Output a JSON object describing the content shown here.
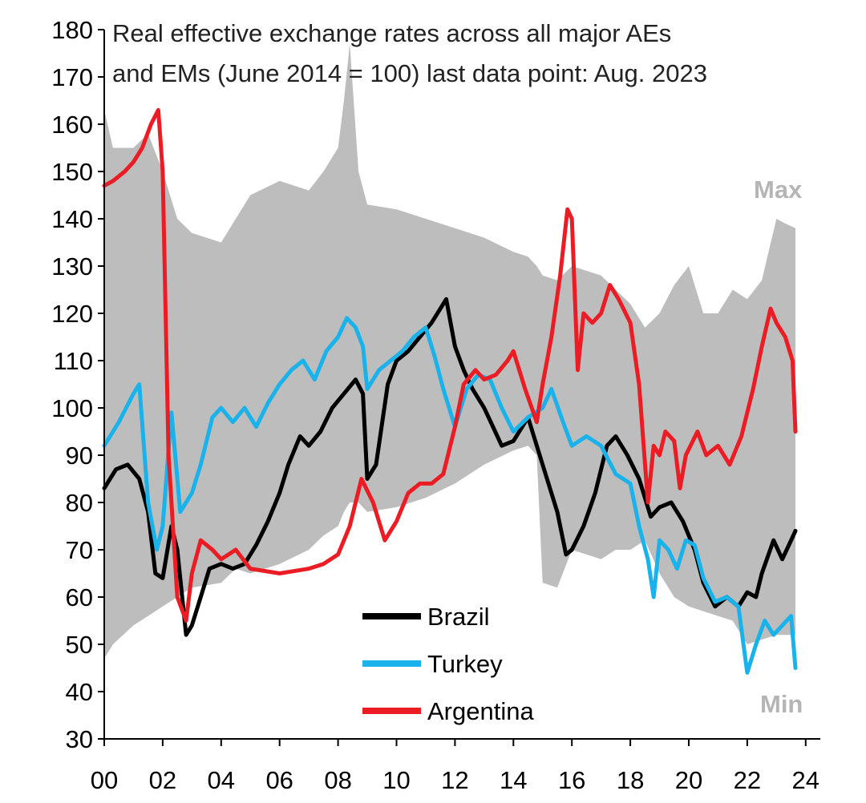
{
  "chart_data": {
    "type": "line",
    "title_line1": "Real effective exchange rates across all major AEs",
    "title_line2": "and EMs (June 2014  = 100)  last data point: Aug. 2023",
    "xlabel": "",
    "ylabel": "",
    "xlim": [
      2000,
      2024.5
    ],
    "ylim": [
      30,
      180
    ],
    "x_ticks": [
      2000,
      2002,
      2004,
      2006,
      2008,
      2010,
      2012,
      2014,
      2016,
      2018,
      2020,
      2022,
      2024
    ],
    "x_tick_labels": [
      "00",
      "02",
      "04",
      "06",
      "08",
      "10",
      "12",
      "14",
      "16",
      "18",
      "20",
      "22",
      "24"
    ],
    "y_ticks": [
      30,
      40,
      50,
      60,
      70,
      80,
      90,
      100,
      110,
      120,
      130,
      140,
      150,
      160,
      170,
      180
    ],
    "y_tick_labels": [
      "30",
      "40",
      "50",
      "60",
      "70",
      "80",
      "90",
      "100",
      "110",
      "120",
      "130",
      "140",
      "150",
      "160",
      "170",
      "180"
    ],
    "band": {
      "name": "Max/Min range",
      "color": "#bdbdbd",
      "max_label": "Max",
      "min_label": "Min",
      "x": [
        2000,
        2000.3,
        2001,
        2001.5,
        2002,
        2002.5,
        2003,
        2004,
        2004.5,
        2005,
        2006,
        2007,
        2007.5,
        2008,
        2008.2,
        2008.4,
        2008.7,
        2009,
        2010,
        2011,
        2012,
        2013,
        2014,
        2014.5,
        2014.8,
        2015,
        2015.5,
        2016,
        2017,
        2017.5,
        2018,
        2018.5,
        2019,
        2019.5,
        2020,
        2020.5,
        2021,
        2021.5,
        2022,
        2022.5,
        2023,
        2023.3,
        2023.65
      ],
      "max": [
        163,
        155,
        155,
        158,
        150,
        140,
        137,
        135,
        140,
        145,
        148,
        146,
        150,
        155,
        165,
        177,
        150,
        143,
        142,
        140,
        138,
        136,
        133,
        132,
        130,
        128,
        127,
        130,
        128,
        125,
        122,
        117,
        120,
        126,
        130,
        120,
        120,
        125,
        123,
        127,
        140,
        139,
        138
      ],
      "min": [
        47,
        50,
        54,
        56,
        58,
        60,
        62,
        63,
        66,
        65,
        67,
        70,
        73,
        75,
        78,
        80,
        80,
        78,
        79,
        81,
        84,
        88,
        91,
        92,
        90,
        63,
        62,
        70,
        68,
        70,
        70,
        72,
        65,
        60,
        58,
        57,
        56,
        55,
        50,
        51,
        52,
        52,
        52
      ]
    },
    "series": [
      {
        "name": "Brazil",
        "color": "#000000",
        "x": [
          2000,
          2000.4,
          2000.8,
          2001.2,
          2001.5,
          2001.75,
          2002,
          2002.3,
          2002.5,
          2002.8,
          2003,
          2003.3,
          2003.6,
          2004,
          2004.4,
          2004.8,
          2005.2,
          2005.6,
          2006,
          2006.3,
          2006.7,
          2007,
          2007.4,
          2007.8,
          2008.2,
          2008.6,
          2008.85,
          2009,
          2009.3,
          2009.7,
          2010,
          2010.4,
          2010.8,
          2011.2,
          2011.5,
          2011.7,
          2012,
          2012.3,
          2012.6,
          2013,
          2013.3,
          2013.6,
          2014,
          2014.5,
          2015,
          2015.5,
          2015.8,
          2016,
          2016.4,
          2016.8,
          2017.2,
          2017.5,
          2017.9,
          2018.3,
          2018.7,
          2019,
          2019.4,
          2019.8,
          2020.2,
          2020.5,
          2020.9,
          2021.3,
          2021.7,
          2022,
          2022.3,
          2022.5,
          2022.9,
          2023.2,
          2023.5,
          2023.65
        ],
        "values": [
          83,
          87,
          88,
          85,
          78,
          65,
          64,
          75,
          70,
          52,
          54,
          60,
          66,
          67,
          66,
          67,
          71,
          76,
          82,
          88,
          94,
          92,
          95,
          100,
          103,
          106,
          103,
          85,
          88,
          105,
          110,
          112,
          115,
          118,
          121,
          123,
          113,
          108,
          104,
          100,
          96,
          92,
          93,
          98,
          88,
          78,
          69,
          70,
          75,
          82,
          92,
          94,
          90,
          85,
          77,
          79,
          80,
          76,
          70,
          63,
          58,
          60,
          58,
          61,
          60,
          65,
          72,
          68,
          72,
          74
        ]
      },
      {
        "name": "Turkey",
        "color": "#1ab2ea",
        "x": [
          2000,
          2000.5,
          2001,
          2001.2,
          2001.5,
          2001.8,
          2002,
          2002.3,
          2002.6,
          2003,
          2003.3,
          2003.7,
          2004,
          2004.4,
          2004.8,
          2005.2,
          2005.6,
          2006,
          2006.4,
          2006.8,
          2007.2,
          2007.6,
          2008,
          2008.3,
          2008.6,
          2008.85,
          2009,
          2009.4,
          2009.8,
          2010.2,
          2010.6,
          2011,
          2011.3,
          2011.6,
          2012,
          2012.4,
          2012.8,
          2013.2,
          2013.6,
          2014,
          2014.5,
          2015,
          2015.3,
          2015.7,
          2016,
          2016.5,
          2017,
          2017.5,
          2018,
          2018.3,
          2018.6,
          2018.8,
          2019,
          2019.3,
          2019.6,
          2019.9,
          2020.2,
          2020.5,
          2020.9,
          2021.3,
          2021.7,
          2022,
          2022.3,
          2022.6,
          2022.9,
          2023.2,
          2023.5,
          2023.65
        ],
        "values": [
          92,
          97,
          103,
          105,
          80,
          70,
          75,
          99,
          78,
          82,
          88,
          98,
          100,
          97,
          100,
          96,
          101,
          105,
          108,
          110,
          106,
          112,
          115,
          119,
          117,
          113,
          104,
          108,
          110,
          112,
          115,
          117,
          111,
          104,
          96,
          104,
          107,
          106,
          100,
          95,
          98,
          100,
          104,
          97,
          92,
          94,
          92,
          86,
          84,
          75,
          68,
          60,
          72,
          70,
          66,
          72,
          71,
          64,
          59,
          60,
          58,
          44,
          50,
          55,
          52,
          54,
          56,
          45
        ]
      },
      {
        "name": "Argentina",
        "color": "#ec1c24",
        "x": [
          2000,
          2000.3,
          2000.7,
          2001,
          2001.3,
          2001.6,
          2001.85,
          2002,
          2002.2,
          2002.5,
          2002.8,
          2003,
          2003.3,
          2003.7,
          2004,
          2004.5,
          2005,
          2006,
          2007,
          2007.5,
          2008,
          2008.4,
          2008.8,
          2009.2,
          2009.6,
          2010,
          2010.4,
          2010.8,
          2011.2,
          2011.6,
          2012,
          2012.3,
          2012.7,
          2013,
          2013.4,
          2013.8,
          2014,
          2014.4,
          2014.8,
          2015,
          2015.3,
          2015.6,
          2015.85,
          2016,
          2016.2,
          2016.4,
          2016.7,
          2017,
          2017.3,
          2017.6,
          2018,
          2018.3,
          2018.6,
          2018.8,
          2019,
          2019.2,
          2019.5,
          2019.7,
          2019.9,
          2020.3,
          2020.6,
          2021,
          2021.4,
          2021.8,
          2022.2,
          2022.5,
          2022.8,
          2023,
          2023.3,
          2023.55,
          2023.65
        ],
        "values": [
          147,
          148,
          150,
          152,
          155,
          160,
          163,
          150,
          90,
          60,
          55,
          65,
          72,
          70,
          68,
          70,
          66,
          65,
          66,
          67,
          69,
          75,
          85,
          80,
          72,
          76,
          82,
          84,
          84,
          86,
          96,
          105,
          108,
          106,
          107,
          110,
          112,
          104,
          97,
          105,
          115,
          128,
          142,
          140,
          108,
          120,
          118,
          120,
          126,
          123,
          118,
          105,
          80,
          92,
          90,
          95,
          93,
          83,
          90,
          95,
          90,
          92,
          88,
          94,
          104,
          113,
          121,
          118,
          115,
          110,
          95
        ]
      }
    ]
  }
}
